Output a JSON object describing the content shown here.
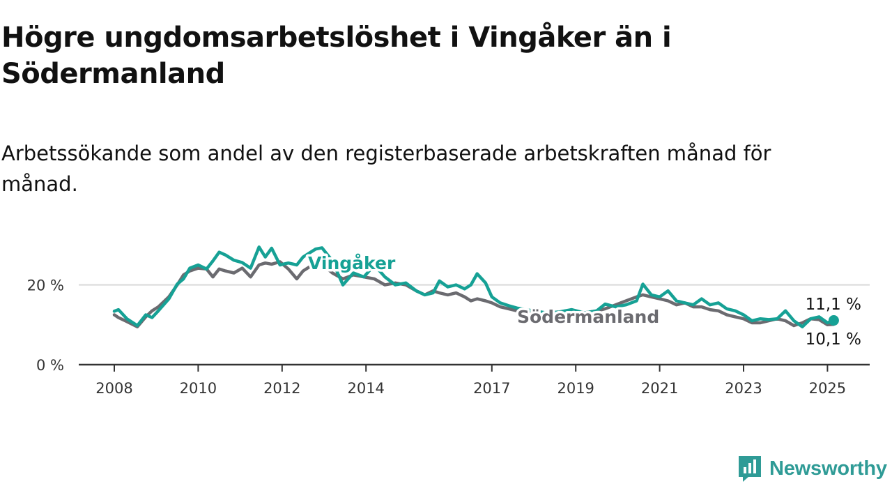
{
  "title": "Högre ungdomsarbetslöshet i Vingåker än i Södermanland",
  "subtitle": "Arbetssökande som andel av den registerbaserade arbetskraften månad för månad.",
  "logo": {
    "text": "Newsworthy",
    "icon": "newsworthy-logo-icon"
  },
  "colors": {
    "vingaker": "#16a195",
    "sodermanland": "#6b6b70",
    "grid": "#d9d9d9",
    "axis": "#333333"
  },
  "chart_data": {
    "type": "line",
    "title": "Högre ungdomsarbetslöshet i Vingåker än i Södermanland",
    "subtitle": "Arbetssökande som andel av den registerbaserade arbetskraften månad för månad.",
    "xlabel": "",
    "ylabel": "",
    "x_range": [
      2008,
      2025.25
    ],
    "xticks": [
      {
        "value": 2008,
        "label": "2008"
      },
      {
        "value": 2010,
        "label": "2010"
      },
      {
        "value": 2012,
        "label": "2012"
      },
      {
        "value": 2014,
        "label": "2014"
      },
      {
        "value": 2017,
        "label": "2017"
      },
      {
        "value": 2019,
        "label": "2019"
      },
      {
        "value": 2021,
        "label": "2021"
      },
      {
        "value": 2023,
        "label": "2023"
      },
      {
        "value": 2025,
        "label": "2025"
      }
    ],
    "ylim": [
      0,
      32
    ],
    "yticks": [
      {
        "value": 0,
        "label": "0 %"
      },
      {
        "value": 20,
        "label": "20 %"
      }
    ],
    "grid": true,
    "legend": "inline labels",
    "series": [
      {
        "name": "Vingåker",
        "color": "#16a195",
        "end_label": "11,1 %",
        "x": [
          2008.0,
          2008.1,
          2008.3,
          2008.55,
          2008.75,
          2008.9,
          2009.05,
          2009.3,
          2009.5,
          2009.65,
          2009.8,
          2010.0,
          2010.2,
          2010.35,
          2010.5,
          2010.65,
          2010.85,
          2011.05,
          2011.25,
          2011.45,
          2011.6,
          2011.75,
          2011.95,
          2012.15,
          2012.35,
          2012.5,
          2012.65,
          2012.8,
          2012.95,
          2013.2,
          2013.45,
          2013.7,
          2013.95,
          2014.2,
          2014.45,
          2014.7,
          2014.95,
          2015.2,
          2015.4,
          2015.6,
          2015.75,
          2015.95,
          2016.15,
          2016.35,
          2016.5,
          2016.65,
          2016.85,
          2017.0,
          2017.2,
          2017.4,
          2017.6,
          2017.8,
          2018.0,
          2018.3,
          2018.6,
          2018.9,
          2019.2,
          2019.5,
          2019.7,
          2019.95,
          2020.2,
          2020.45,
          2020.6,
          2020.8,
          2021.0,
          2021.2,
          2021.4,
          2021.6,
          2021.8,
          2022.0,
          2022.2,
          2022.4,
          2022.6,
          2022.8,
          2023.0,
          2023.2,
          2023.4,
          2023.6,
          2023.8,
          2024.0,
          2024.2,
          2024.4,
          2024.6,
          2024.8,
          2025.0,
          2025.15
        ],
        "values": [
          13.4,
          13.8,
          11.5,
          9.8,
          12.5,
          11.8,
          13.5,
          16.5,
          20.2,
          21.5,
          24.2,
          25.0,
          24.0,
          26.0,
          28.2,
          27.5,
          26.2,
          25.6,
          24.2,
          29.5,
          27.0,
          29.2,
          25.0,
          25.5,
          25.0,
          27.0,
          28.0,
          29.0,
          29.3,
          26.0,
          20.0,
          23.0,
          22.0,
          25.0,
          22.0,
          20.0,
          20.5,
          18.5,
          17.5,
          18.0,
          21.0,
          19.5,
          20.0,
          19.0,
          20.0,
          22.8,
          20.5,
          17.0,
          15.5,
          14.8,
          14.2,
          13.8,
          13.5,
          13.0,
          13.2,
          13.8,
          13.0,
          13.5,
          15.2,
          14.5,
          15.0,
          16.0,
          20.2,
          17.5,
          17.0,
          18.5,
          16.0,
          15.5,
          15.0,
          16.5,
          15.0,
          15.5,
          14.0,
          13.5,
          12.5,
          11.0,
          11.5,
          11.3,
          11.5,
          13.5,
          11.0,
          9.5,
          11.5,
          12.0,
          10.5,
          11.1
        ]
      },
      {
        "name": "Södermanland",
        "color": "#6b6b70",
        "end_label": "10,1 %",
        "x": [
          2008.0,
          2008.1,
          2008.3,
          2008.55,
          2008.75,
          2008.9,
          2009.05,
          2009.3,
          2009.5,
          2009.65,
          2009.8,
          2010.0,
          2010.2,
          2010.35,
          2010.5,
          2010.65,
          2010.85,
          2011.05,
          2011.25,
          2011.45,
          2011.6,
          2011.75,
          2011.95,
          2012.15,
          2012.35,
          2012.5,
          2012.65,
          2012.8,
          2012.95,
          2013.2,
          2013.45,
          2013.7,
          2013.95,
          2014.2,
          2014.45,
          2014.7,
          2014.95,
          2015.2,
          2015.4,
          2015.6,
          2015.75,
          2015.95,
          2016.15,
          2016.35,
          2016.5,
          2016.65,
          2016.85,
          2017.0,
          2017.2,
          2017.4,
          2017.6,
          2017.8,
          2018.0,
          2018.3,
          2018.6,
          2018.9,
          2019.2,
          2019.5,
          2019.7,
          2019.95,
          2020.2,
          2020.45,
          2020.6,
          2020.8,
          2021.0,
          2021.2,
          2021.4,
          2021.6,
          2021.8,
          2022.0,
          2022.2,
          2022.4,
          2022.6,
          2022.8,
          2023.0,
          2023.2,
          2023.4,
          2023.6,
          2023.8,
          2024.0,
          2024.2,
          2024.4,
          2024.6,
          2024.8,
          2025.0,
          2025.15
        ],
        "values": [
          12.5,
          11.8,
          10.8,
          9.5,
          12.0,
          13.5,
          14.5,
          17.0,
          20.0,
          22.5,
          23.5,
          24.2,
          24.0,
          22.0,
          24.0,
          23.5,
          23.0,
          24.2,
          22.0,
          25.0,
          25.5,
          25.2,
          25.8,
          24.0,
          21.5,
          23.5,
          24.5,
          25.5,
          25.2,
          23.0,
          21.5,
          22.5,
          22.0,
          21.5,
          20.0,
          20.5,
          20.0,
          18.5,
          17.5,
          18.5,
          18.0,
          17.5,
          18.0,
          17.0,
          16.0,
          16.5,
          16.0,
          15.5,
          14.5,
          14.0,
          13.5,
          13.2,
          12.8,
          13.0,
          13.2,
          13.5,
          13.0,
          13.5,
          14.0,
          15.0,
          16.0,
          17.0,
          17.5,
          17.0,
          16.5,
          16.0,
          15.0,
          15.5,
          14.5,
          14.5,
          13.8,
          13.5,
          12.5,
          12.0,
          11.5,
          10.5,
          10.5,
          11.0,
          11.5,
          11.0,
          9.8,
          10.5,
          11.5,
          11.3,
          10.0,
          10.1
        ]
      }
    ]
  }
}
